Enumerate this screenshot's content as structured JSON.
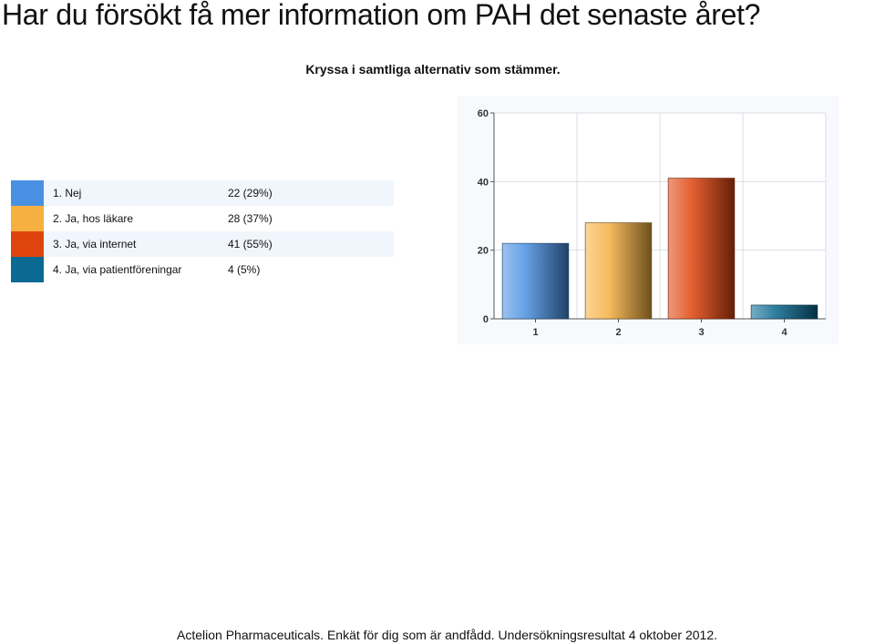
{
  "title": "Har du försökt få mer information om PAH det senaste året?",
  "subtitle": "Kryssa i samtliga alternativ som stämmer.",
  "legend": [
    {
      "label": "1. Nej",
      "value": "22 (29%)",
      "color": "#4a90e2"
    },
    {
      "label": "2. Ja, hos läkare",
      "value": "28 (37%)",
      "color": "#f5b041"
    },
    {
      "label": "3. Ja, via internet",
      "value": "41 (55%)",
      "color": "#e0440e"
    },
    {
      "label": "4. Ja, via patientföreningar",
      "value": "4 (5%)",
      "color": "#0b6a92"
    }
  ],
  "footer": "Actelion Pharmaceuticals. Enkät för dig som är andfådd. Undersökningsresultat 4 oktober 2012.",
  "chart_data": {
    "type": "bar",
    "categories": [
      "1",
      "2",
      "3",
      "4"
    ],
    "values": [
      22,
      28,
      41,
      4
    ],
    "colors": [
      "#4a90e2",
      "#f5b041",
      "#e0440e",
      "#0b6a92"
    ],
    "ylim": [
      0,
      60
    ],
    "yticks": [
      0,
      20,
      40,
      60
    ],
    "grid": true
  }
}
